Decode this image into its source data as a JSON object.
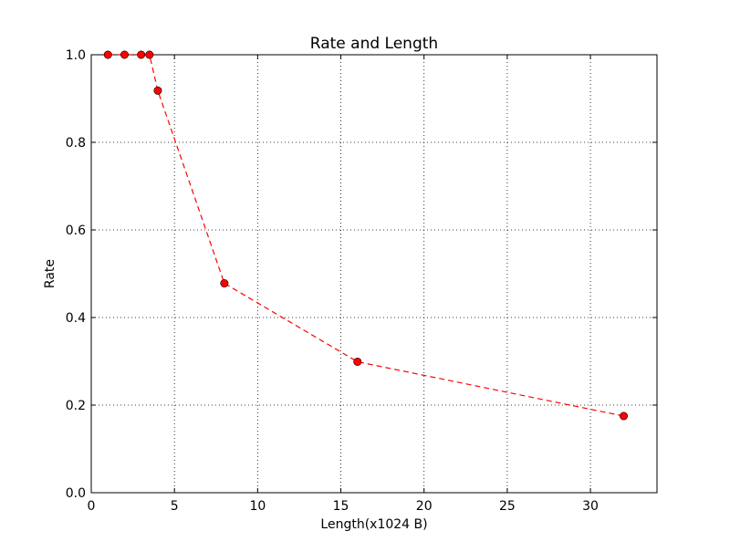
{
  "chart_data": {
    "type": "line",
    "title": "Rate and Length",
    "xlabel": "Length(x1024 B)",
    "ylabel": "Rate",
    "xlim": [
      0,
      34
    ],
    "ylim": [
      0.0,
      1.0
    ],
    "xticks": [
      0,
      5,
      10,
      15,
      20,
      25,
      30
    ],
    "xtick_labels": [
      "0",
      "5",
      "10",
      "15",
      "20",
      "25",
      "30"
    ],
    "yticks": [
      0.0,
      0.2,
      0.4,
      0.6,
      0.8,
      1.0
    ],
    "ytick_labels": [
      "0.0",
      "0.2",
      "0.4",
      "0.6",
      "0.8",
      "1.0"
    ],
    "grid": true,
    "series": [
      {
        "color": "#ff0000",
        "line_style": "dashed",
        "marker": "circle",
        "x": [
          1,
          2,
          3,
          3.5,
          4,
          8,
          16,
          32
        ],
        "y": [
          1.0,
          1.0,
          1.0,
          1.0,
          0.918,
          0.478,
          0.299,
          0.175
        ]
      }
    ]
  }
}
